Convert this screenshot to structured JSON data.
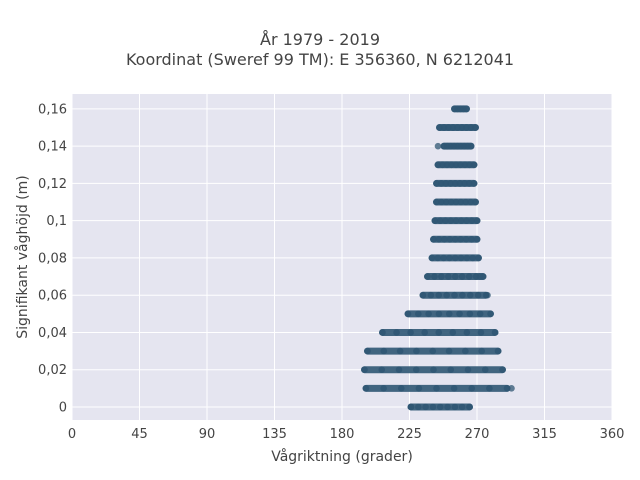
{
  "chart_data": {
    "type": "scatter",
    "title": "År 1979 - 2019",
    "subtitle": "Koordinat (Sweref 99 TM): E 356360, N 6212041",
    "xlabel": "Vågriktning (grader)",
    "ylabel": "Signifikant våghöjd (m)",
    "xlim": [
      0,
      360
    ],
    "ylim": [
      -0.007,
      0.168
    ],
    "x_ticks": [
      0,
      45,
      90,
      135,
      180,
      225,
      270,
      315,
      360
    ],
    "x_tick_labels": [
      "0",
      "45",
      "90",
      "135",
      "180",
      "225",
      "270",
      "315",
      "360"
    ],
    "y_ticks": [
      0,
      0.02,
      0.04,
      0.06,
      0.08,
      0.1,
      0.12,
      0.14,
      0.16
    ],
    "y_tick_labels": [
      "0",
      "0,02",
      "0,04",
      "0,06",
      "0,08",
      "0,1",
      "0,12",
      "0,14",
      "0,16"
    ],
    "grid": true,
    "marker_color": "#2f5673",
    "background_color": "#e5e5f0",
    "series": [
      {
        "bands": [
          {
            "y": 0.0,
            "x_min": 226,
            "x_max": 265
          },
          {
            "y": 0.01,
            "x_min": 196,
            "x_max": 290
          },
          {
            "y": 0.02,
            "x_min": 195,
            "x_max": 287
          },
          {
            "y": 0.03,
            "x_min": 197,
            "x_max": 284
          },
          {
            "y": 0.04,
            "x_min": 207,
            "x_max": 282
          },
          {
            "y": 0.05,
            "x_min": 224,
            "x_max": 279
          },
          {
            "y": 0.06,
            "x_min": 234,
            "x_max": 276
          },
          {
            "y": 0.07,
            "x_min": 237,
            "x_max": 274
          },
          {
            "y": 0.08,
            "x_min": 240,
            "x_max": 271
          },
          {
            "y": 0.09,
            "x_min": 241,
            "x_max": 270
          },
          {
            "y": 0.1,
            "x_min": 242,
            "x_max": 270
          },
          {
            "y": 0.11,
            "x_min": 243,
            "x_max": 269
          },
          {
            "y": 0.12,
            "x_min": 243,
            "x_max": 268
          },
          {
            "y": 0.13,
            "x_min": 244,
            "x_max": 268
          },
          {
            "y": 0.14,
            "x_min": 248,
            "x_max": 266
          },
          {
            "y": 0.15,
            "x_min": 245,
            "x_max": 269
          },
          {
            "y": 0.16,
            "x_min": 255,
            "x_max": 263
          }
        ],
        "outliers": [
          {
            "x": 244,
            "y": 0.14
          },
          {
            "x": 272,
            "y": 0.07
          },
          {
            "x": 277,
            "y": 0.06
          },
          {
            "x": 293,
            "y": 0.01
          },
          {
            "x": 226,
            "y": 0.0
          },
          {
            "x": 265,
            "y": 0.0
          }
        ]
      }
    ]
  }
}
